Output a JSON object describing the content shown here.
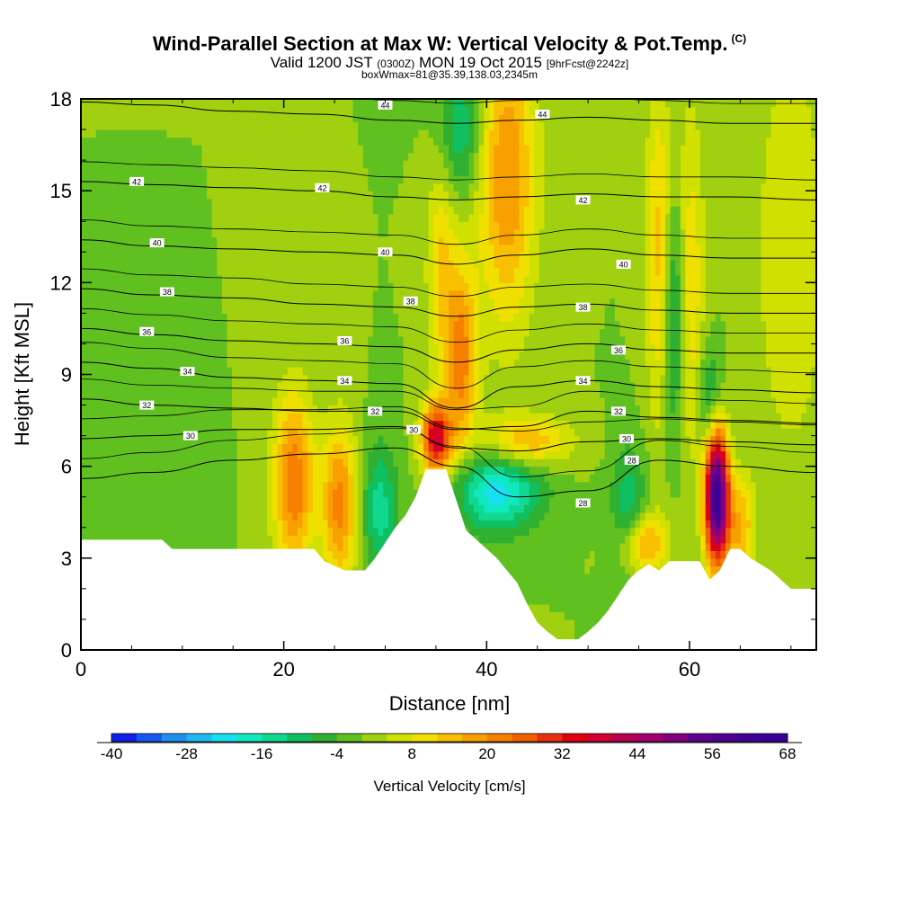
{
  "header": {
    "title": "Wind-Parallel Section at Max W: Vertical Velocity & Pot.Temp.",
    "copyright": "(C)",
    "valid_prefix": "Valid 1200 JST",
    "valid_utc": "(0300Z)",
    "valid_date": "MON 19 Oct 2015",
    "forecast": "[9hrFcst@2242z]",
    "box_info": "boxWmax=81@35.39,138.03,2345m"
  },
  "chart_data": {
    "type": "heatmap",
    "title": "Wind-Parallel Section at Max W: Vertical Velocity & Pot.Temp.",
    "xlabel": "Distance [nm]",
    "ylabel": "Height [Kft MSL]",
    "xlim": [
      0,
      72.5
    ],
    "ylim": [
      0,
      18
    ],
    "xticks": [
      0,
      20,
      40,
      60
    ],
    "yticks": [
      0,
      3,
      6,
      9,
      12,
      15,
      18
    ],
    "colorbar": {
      "label": "Vertical Velocity [cm/s]",
      "min": -40,
      "max": 68,
      "step": 4,
      "tick_labels": [
        -40,
        -28,
        -16,
        -4,
        8,
        20,
        32,
        44,
        56,
        68
      ],
      "colors": [
        "#1020e8",
        "#1858f0",
        "#2090f0",
        "#20b8f0",
        "#18e0f0",
        "#10e8c0",
        "#10d890",
        "#10c060",
        "#30b030",
        "#60c020",
        "#a0d010",
        "#d0e000",
        "#f0e000",
        "#f8c000",
        "#f8a000",
        "#f88000",
        "#f06000",
        "#e83010",
        "#e00010",
        "#d00030",
        "#b80050",
        "#a00070",
        "#800080",
        "#600090",
        "#500090",
        "#400098",
        "#380098"
      ]
    },
    "terrain": [
      [
        0,
        3.6
      ],
      [
        8,
        3.6
      ],
      [
        9,
        3.3
      ],
      [
        23,
        3.3
      ],
      [
        24,
        2.9
      ],
      [
        26,
        2.6
      ],
      [
        28,
        2.6
      ],
      [
        29,
        3.0
      ],
      [
        30,
        3.5
      ],
      [
        31,
        4.0
      ],
      [
        32,
        4.4
      ],
      [
        33,
        5.0
      ],
      [
        34,
        5.9
      ],
      [
        35,
        5.9
      ],
      [
        36,
        5.9
      ],
      [
        37,
        4.9
      ],
      [
        38,
        3.9
      ],
      [
        39,
        3.6
      ],
      [
        40,
        3.3
      ],
      [
        41,
        3.0
      ],
      [
        42,
        2.6
      ],
      [
        43,
        2.2
      ],
      [
        44,
        1.5
      ],
      [
        45,
        0.9
      ],
      [
        46,
        0.6
      ],
      [
        47,
        0.35
      ],
      [
        49,
        0.35
      ],
      [
        50,
        0.6
      ],
      [
        51,
        0.9
      ],
      [
        52,
        1.3
      ],
      [
        53,
        1.8
      ],
      [
        54,
        2.3
      ],
      [
        55,
        2.6
      ],
      [
        56,
        2.8
      ],
      [
        57,
        2.6
      ],
      [
        58,
        2.9
      ],
      [
        61,
        2.9
      ],
      [
        62,
        2.3
      ],
      [
        63,
        2.6
      ],
      [
        64,
        3.3
      ],
      [
        65,
        3.3
      ],
      [
        66,
        3.0
      ],
      [
        67,
        2.8
      ],
      [
        68,
        2.6
      ],
      [
        69,
        2.3
      ],
      [
        70,
        2.0
      ],
      [
        72.5,
        2.0
      ]
    ],
    "w_features": [
      {
        "x": 21,
        "y": 5.5,
        "sx": 1.4,
        "sy": 2.0,
        "w": 24
      },
      {
        "x": 25.5,
        "y": 4.8,
        "sx": 1.2,
        "sy": 1.8,
        "w": 22
      },
      {
        "x": 29.5,
        "y": 4.6,
        "sx": 1.2,
        "sy": 1.5,
        "w": -14
      },
      {
        "x": 35,
        "y": 6.9,
        "sx": 1.0,
        "sy": 0.8,
        "w": 38
      },
      {
        "x": 37.5,
        "y": 9.5,
        "sx": 1.1,
        "sy": 2.2,
        "w": 22
      },
      {
        "x": 35.5,
        "y": 12.5,
        "sx": 1.0,
        "sy": 2.5,
        "w": 12
      },
      {
        "x": 37.5,
        "y": 17.0,
        "sx": 1.5,
        "sy": 1.5,
        "w": -12
      },
      {
        "x": 42,
        "y": 15.5,
        "sx": 2.0,
        "sy": 3.5,
        "w": 20
      },
      {
        "x": 41,
        "y": 5.2,
        "sx": 3.0,
        "sy": 0.9,
        "w": -22
      },
      {
        "x": 44,
        "y": 6.8,
        "sx": 3.0,
        "sy": 0.6,
        "w": 16
      },
      {
        "x": 54,
        "y": 4.6,
        "sx": 1.2,
        "sy": 1.4,
        "w": -12
      },
      {
        "x": 55.5,
        "y": 3.5,
        "sx": 1.6,
        "sy": 0.7,
        "w": 18
      },
      {
        "x": 57,
        "y": 13,
        "sx": 0.9,
        "sy": 4.0,
        "w": 14
      },
      {
        "x": 58.5,
        "y": 11,
        "sx": 0.8,
        "sy": 3.0,
        "w": -14
      },
      {
        "x": 60,
        "y": 12,
        "sx": 1.0,
        "sy": 4.0,
        "w": 12
      },
      {
        "x": 62.7,
        "y": 5.0,
        "sx": 0.8,
        "sy": 1.5,
        "w": 66
      },
      {
        "x": 62,
        "y": 8.2,
        "sx": 0.8,
        "sy": 1.2,
        "w": -10
      },
      {
        "x": 65,
        "y": 4.0,
        "sx": 1.0,
        "sy": 1.2,
        "w": 16
      },
      {
        "x": 70,
        "y": 13,
        "sx": 2.5,
        "sy": 5.0,
        "w": 8
      },
      {
        "x": 5,
        "y": 4.5,
        "sx": 3.0,
        "sy": 1.5,
        "w": -4
      }
    ],
    "isentropes": [
      {
        "value": 44,
        "y": [
          17.9,
          17.8,
          17.6,
          17.5,
          17.3,
          17.2,
          17.3,
          17.4,
          17.3,
          17.2,
          17.2
        ]
      },
      {
        "value": 42,
        "y": [
          15.3,
          15.2,
          15.1,
          15.0,
          14.8,
          14.7,
          14.8,
          14.9,
          14.8,
          14.8,
          14.7
        ]
      },
      {
        "value": 40,
        "y": [
          13.4,
          13.2,
          13.1,
          13.0,
          12.9,
          12.6,
          12.9,
          13.1,
          12.9,
          12.8,
          12.8
        ]
      },
      {
        "value": 38,
        "y": [
          11.8,
          11.6,
          11.5,
          11.3,
          11.2,
          10.9,
          11.2,
          11.3,
          11.1,
          11.0,
          11.0
        ]
      },
      {
        "value": 36,
        "y": [
          10.5,
          10.3,
          10.1,
          10.0,
          9.9,
          9.4,
          9.8,
          10.0,
          9.8,
          9.7,
          9.7
        ]
      },
      {
        "value": 34,
        "y": [
          9.4,
          9.2,
          8.9,
          8.8,
          8.7,
          7.9,
          8.6,
          8.8,
          8.6,
          8.5,
          8.4
        ]
      },
      {
        "value": 32,
        "y": [
          8.2,
          8.0,
          7.9,
          7.8,
          7.8,
          7.2,
          7.3,
          7.8,
          7.6,
          7.5,
          7.4
        ]
      },
      {
        "value": 30,
        "y": [
          6.9,
          7.0,
          7.2,
          7.2,
          7.3,
          6.6,
          6.5,
          6.8,
          6.9,
          6.8,
          6.7
        ]
      },
      {
        "value": 28,
        "y": [
          5.6,
          5.8,
          6.2,
          6.4,
          6.6,
          6.0,
          5.0,
          5.2,
          6.2,
          6.0,
          5.8
        ]
      }
    ],
    "isentrope_x": [
      0,
      7,
      15,
      23,
      31,
      37,
      43,
      50,
      57,
      64,
      72.5
    ],
    "isentrope_labels": [
      {
        "x": 30,
        "y": 17.8,
        "text": "44"
      },
      {
        "x": 45.5,
        "y": 17.5,
        "text": "44"
      },
      {
        "x": 5.5,
        "y": 15.3,
        "text": "42"
      },
      {
        "x": 23.8,
        "y": 15.1,
        "text": "42"
      },
      {
        "x": 49.5,
        "y": 14.7,
        "text": "42"
      },
      {
        "x": 7.5,
        "y": 13.3,
        "text": "40"
      },
      {
        "x": 30,
        "y": 13.0,
        "text": "40"
      },
      {
        "x": 53.5,
        "y": 12.6,
        "text": "40"
      },
      {
        "x": 8.5,
        "y": 11.7,
        "text": "38"
      },
      {
        "x": 32.5,
        "y": 11.4,
        "text": "38"
      },
      {
        "x": 49.5,
        "y": 11.2,
        "text": "38"
      },
      {
        "x": 6.5,
        "y": 10.4,
        "text": "36"
      },
      {
        "x": 26,
        "y": 10.1,
        "text": "36"
      },
      {
        "x": 53,
        "y": 9.8,
        "text": "36"
      },
      {
        "x": 10.5,
        "y": 9.1,
        "text": "34"
      },
      {
        "x": 26,
        "y": 8.8,
        "text": "34"
      },
      {
        "x": 49.5,
        "y": 8.8,
        "text": "34"
      },
      {
        "x": 6.5,
        "y": 8.0,
        "text": "32"
      },
      {
        "x": 29,
        "y": 7.8,
        "text": "32"
      },
      {
        "x": 53,
        "y": 7.8,
        "text": "32"
      },
      {
        "x": 10.8,
        "y": 7.0,
        "text": "30"
      },
      {
        "x": 32.8,
        "y": 7.2,
        "text": "30"
      },
      {
        "x": 53.8,
        "y": 6.9,
        "text": "30"
      },
      {
        "x": 54.3,
        "y": 6.2,
        "text": "28"
      },
      {
        "x": 49.5,
        "y": 4.8,
        "text": "28"
      }
    ]
  }
}
